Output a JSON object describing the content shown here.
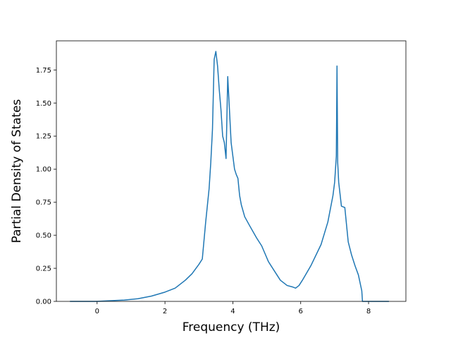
{
  "chart_data": {
    "type": "line",
    "title": "",
    "xlabel": "Frequency (THz)",
    "ylabel": "Partial Density of States",
    "xlim": [
      -1.2,
      9.1
    ],
    "ylim": [
      0,
      1.97
    ],
    "xticks": [
      0,
      2,
      4,
      6,
      8
    ],
    "xtick_labels": [
      "0",
      "2",
      "4",
      "6",
      "8"
    ],
    "yticks": [
      0,
      0.25,
      0.5,
      0.75,
      1.0,
      1.25,
      1.5,
      1.75
    ],
    "ytick_labels": [
      "0.00",
      "0.25",
      "0.50",
      "0.75",
      "1.00",
      "1.25",
      "1.50",
      "1.75"
    ],
    "grid": false,
    "legend": "none",
    "series": [
      {
        "color": "#1f77b4",
        "x": [
          -0.8,
          -0.4,
          0.0,
          0.4,
          0.8,
          1.2,
          1.6,
          2.0,
          2.3,
          2.6,
          2.8,
          3.0,
          3.1,
          3.2,
          3.3,
          3.35,
          3.4,
          3.45,
          3.5,
          3.55,
          3.6,
          3.65,
          3.7,
          3.75,
          3.8,
          3.85,
          3.9,
          3.95,
          4.0,
          4.05,
          4.1,
          4.15,
          4.2,
          4.25,
          4.35,
          4.5,
          4.7,
          4.85,
          4.95,
          5.05,
          5.2,
          5.4,
          5.6,
          5.75,
          5.85,
          5.95,
          6.05,
          6.3,
          6.6,
          6.8,
          6.95,
          7.0,
          7.05,
          7.07,
          7.09,
          7.12,
          7.2,
          7.3,
          7.4,
          7.5,
          7.6,
          7.7,
          7.8,
          7.82,
          8.0,
          8.6
        ],
        "y": [
          0.0,
          0.0,
          0.0,
          0.005,
          0.01,
          0.02,
          0.04,
          0.07,
          0.1,
          0.16,
          0.21,
          0.28,
          0.32,
          0.6,
          0.85,
          1.05,
          1.3,
          1.83,
          1.89,
          1.78,
          1.6,
          1.45,
          1.25,
          1.2,
          1.08,
          1.7,
          1.45,
          1.2,
          1.1,
          1.0,
          0.96,
          0.93,
          0.8,
          0.73,
          0.64,
          0.57,
          0.48,
          0.42,
          0.36,
          0.3,
          0.24,
          0.16,
          0.12,
          0.11,
          0.1,
          0.12,
          0.16,
          0.27,
          0.43,
          0.6,
          0.8,
          0.9,
          1.1,
          1.78,
          1.05,
          0.9,
          0.72,
          0.71,
          0.45,
          0.35,
          0.27,
          0.2,
          0.08,
          0.0,
          0.0,
          0.0
        ]
      }
    ]
  }
}
